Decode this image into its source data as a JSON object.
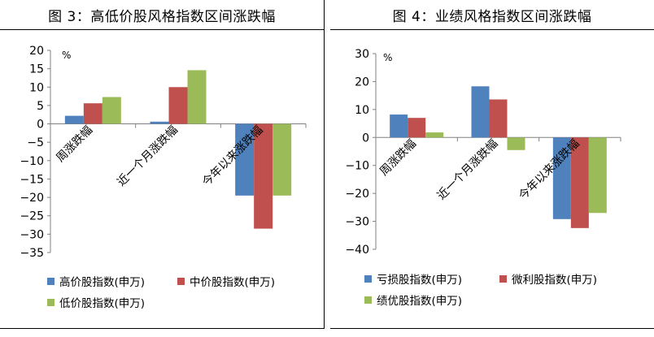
{
  "colors": {
    "blue": "#4F81BD",
    "red": "#C0504D",
    "green": "#9BBB59",
    "axis": "#808080"
  },
  "chart_data": [
    {
      "type": "bar",
      "title": "图 3：高低价股风格指数区间涨跌幅",
      "unit": "%",
      "ylim": [
        -35,
        20
      ],
      "yticks": [
        20,
        15,
        10,
        5,
        0,
        -5,
        -10,
        -15,
        -20,
        -25,
        -30,
        -35
      ],
      "categories": [
        "周涨跌幅",
        "近一个月涨跌幅",
        "今年以来涨跌幅"
      ],
      "series": [
        {
          "name": "高价股指数(申万)",
          "color": "#4F81BD",
          "values": [
            2.2,
            0.6,
            -19.5
          ]
        },
        {
          "name": "中价股指数(申万)",
          "color": "#C0504D",
          "values": [
            5.6,
            10.0,
            -28.5
          ]
        },
        {
          "name": "低价股指数(申万)",
          "color": "#9BBB59",
          "values": [
            7.3,
            14.6,
            -19.5
          ]
        }
      ],
      "grid": false,
      "legend": "bottom"
    },
    {
      "type": "bar",
      "title": "图 4：业绩风格指数区间涨跌幅",
      "unit": "%",
      "ylim": [
        -40,
        30
      ],
      "yticks": [
        30,
        20,
        10,
        0,
        -10,
        -20,
        -30,
        -40
      ],
      "categories": [
        "周涨跌幅",
        "近一个月涨跌幅",
        "今年以来涨跌幅"
      ],
      "series": [
        {
          "name": "亏损股指数(申万)",
          "color": "#4F81BD",
          "values": [
            8.2,
            18.3,
            -29.2
          ]
        },
        {
          "name": "微利股指数(申万)",
          "color": "#C0504D",
          "values": [
            7.0,
            13.6,
            -32.4
          ]
        },
        {
          "name": "绩优股指数(申万)",
          "color": "#9BBB59",
          "values": [
            1.8,
            -4.5,
            -27.0
          ]
        }
      ],
      "grid": false,
      "legend": "bottom"
    }
  ]
}
